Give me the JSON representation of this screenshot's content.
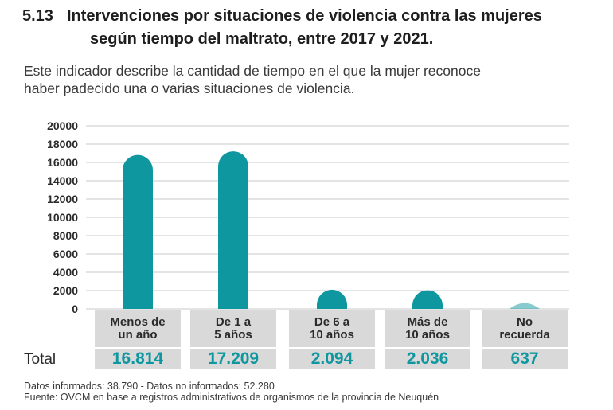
{
  "header": {
    "number": "5.13",
    "title_line1": "Intervenciones por situaciones de violencia contra las mujeres",
    "title_line2": "según tiempo del maltrato, entre 2017 y 2021."
  },
  "description": {
    "line1": "Este indicador describe la cantidad de tiempo en el que la mujer reconoce",
    "line2": "haber padecido una o varias situaciones de violencia."
  },
  "colors": {
    "bar": "#0f97a0",
    "grid": "#c8c8c8",
    "label_bg": "#d9d9d9"
  },
  "chart_data": {
    "type": "bar",
    "title": "Intervenciones por situaciones de violencia contra las mujeres según tiempo del maltrato, entre 2017 y 2021.",
    "categories": [
      [
        "Menos de",
        "un año"
      ],
      [
        "De 1 a",
        "5 años"
      ],
      [
        "De 6 a",
        "10 años"
      ],
      [
        "Más de",
        "10 años"
      ],
      [
        "No",
        "recuerda"
      ]
    ],
    "values": [
      16814,
      17209,
      2094,
      2036,
      637
    ],
    "yticks": [
      "20000",
      "18000",
      "16000",
      "14000",
      "12000",
      "10000",
      "8000",
      "6000",
      "4000",
      "2000",
      "0"
    ],
    "ylim": [
      0,
      20000
    ],
    "xlabel": "",
    "ylabel": "",
    "grid": true
  },
  "totals": {
    "label": "Total",
    "values": [
      "16.814",
      "17.209",
      "2.094",
      "2.036",
      "637"
    ]
  },
  "footnotes": {
    "line1": "Datos informados: 38.790 - Datos no informados: 52.280",
    "line2": "Fuente: OVCM en base a registros administrativos de organismos de la provincia de Neuquén"
  }
}
